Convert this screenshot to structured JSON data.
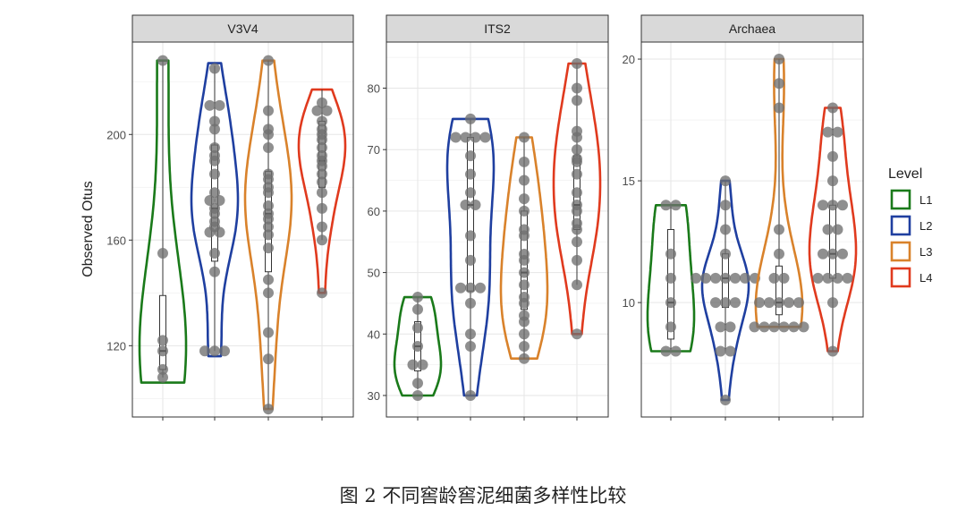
{
  "caption": "图 2 不同窖龄窖泥细菌多样性比较",
  "legend": {
    "title": "Level",
    "position": "right",
    "items": [
      {
        "label": "L1",
        "color": "#1a7a1a"
      },
      {
        "label": "L2",
        "color": "#1f3fa0"
      },
      {
        "label": "L3",
        "color": "#d9822b"
      },
      {
        "label": "L4",
        "color": "#e03a1e"
      }
    ]
  },
  "chart_data": [
    {
      "type": "violin",
      "title": "V3V4",
      "ylabel": "Observed Otus",
      "categories": [
        "L1",
        "L2",
        "L3",
        "L4"
      ],
      "ylim": [
        93,
        235
      ],
      "yticks": [
        120,
        160,
        200
      ],
      "grid": true,
      "series": [
        {
          "name": "L1",
          "points": [
            108,
            111,
            118,
            122,
            155,
            228
          ],
          "box": {
            "min": 108,
            "q1": 111,
            "median": 118,
            "q3": 139,
            "max": 228
          },
          "range": [
            106,
            228
          ]
        },
        {
          "name": "L2",
          "points": [
            118,
            118,
            118,
            148,
            155,
            163,
            163,
            165,
            167,
            170,
            172,
            175,
            175,
            178,
            185,
            190,
            192,
            195,
            202,
            205,
            211,
            211,
            225
          ],
          "box": {
            "min": 118,
            "q1": 152,
            "median": 172,
            "q3": 196,
            "max": 226
          },
          "range": [
            116,
            227
          ]
        },
        {
          "name": "L3",
          "points": [
            96,
            115,
            125,
            140,
            145,
            157,
            162,
            165,
            168,
            170,
            173,
            178,
            180,
            183,
            185,
            195,
            200,
            202,
            209,
            228
          ],
          "box": {
            "min": 96,
            "q1": 148,
            "median": 170,
            "q3": 186,
            "max": 228
          },
          "range": [
            96,
            228
          ]
        },
        {
          "name": "L4",
          "points": [
            140,
            160,
            165,
            172,
            178,
            182,
            185,
            188,
            190,
            192,
            195,
            198,
            200,
            202,
            205,
            209,
            209,
            212
          ],
          "box": {
            "min": 160,
            "q1": 180,
            "median": 190,
            "q3": 205,
            "max": 217
          },
          "range": [
            140,
            217
          ]
        }
      ]
    },
    {
      "type": "violin",
      "title": "ITS2",
      "categories": [
        "L1",
        "L2",
        "L3",
        "L4"
      ],
      "ylim": [
        26.5,
        87.5
      ],
      "yticks": [
        30,
        40,
        50,
        60,
        70,
        80
      ],
      "grid": true,
      "series": [
        {
          "name": "L1",
          "points": [
            30,
            32,
            35,
            35,
            38,
            41,
            44,
            46
          ],
          "box": {
            "min": 31,
            "q1": 34,
            "median": 38,
            "q3": 42,
            "max": 46
          },
          "range": [
            30,
            46
          ]
        },
        {
          "name": "L2",
          "points": [
            30,
            38,
            40,
            45,
            47.5,
            47.5,
            47.5,
            52,
            56,
            61,
            61,
            63,
            66,
            69,
            72,
            72,
            72,
            72,
            75
          ],
          "box": {
            "min": 30,
            "q1": 47,
            "median": 61,
            "q3": 72,
            "max": 75
          },
          "range": [
            30,
            75
          ]
        },
        {
          "name": "L3",
          "points": [
            36,
            38,
            40,
            42,
            43,
            45,
            46,
            48,
            50,
            52,
            53,
            56,
            57,
            60,
            62,
            65,
            68,
            72
          ],
          "box": {
            "min": 36,
            "q1": 44,
            "median": 50,
            "q3": 60,
            "max": 72
          },
          "range": [
            36,
            72
          ]
        },
        {
          "name": "L4",
          "points": [
            40,
            48,
            52,
            55,
            57,
            58,
            60,
            61,
            63,
            66,
            68,
            68.5,
            70,
            72,
            73,
            78,
            80,
            84
          ],
          "box": {
            "min": 48,
            "q1": 57,
            "median": 61,
            "q3": 69,
            "max": 84
          },
          "range": [
            40,
            84
          ]
        }
      ]
    },
    {
      "type": "violin",
      "title": "Archaea",
      "categories": [
        "L1",
        "L2",
        "L3",
        "L4"
      ],
      "ylim": [
        5.3,
        20.7
      ],
      "yticks": [
        10,
        15,
        20
      ],
      "grid": true,
      "series": [
        {
          "name": "L1",
          "points": [
            8,
            8,
            9,
            10,
            11,
            12,
            14,
            14
          ],
          "box": {
            "min": 8,
            "q1": 8.5,
            "median": 10,
            "q3": 13,
            "max": 14
          },
          "range": [
            8,
            14
          ]
        },
        {
          "name": "L2",
          "points": [
            6,
            8,
            8,
            9,
            9,
            10,
            10,
            10,
            11,
            11,
            11,
            11,
            11,
            11,
            11,
            12,
            13,
            14,
            15
          ],
          "box": {
            "min": 8,
            "q1": 9.8,
            "median": 11,
            "q3": 12,
            "max": 15
          },
          "range": [
            6,
            15
          ]
        },
        {
          "name": "L3",
          "points": [
            9,
            9,
            9,
            9,
            9,
            9,
            10,
            10,
            10,
            10,
            10,
            11,
            11,
            12,
            13,
            18,
            19,
            20
          ],
          "box": {
            "min": 9,
            "q1": 9.5,
            "median": 10,
            "q3": 11.5,
            "max": 20
          },
          "range": [
            9,
            20
          ]
        },
        {
          "name": "L4",
          "points": [
            8,
            10,
            11,
            11,
            11,
            11,
            12,
            12,
            12,
            13,
            13,
            14,
            14,
            14,
            15,
            16,
            17,
            17,
            18
          ],
          "box": {
            "min": 8,
            "q1": 11,
            "median": 12,
            "q3": 14,
            "max": 18
          },
          "range": [
            8,
            18
          ]
        }
      ]
    }
  ]
}
